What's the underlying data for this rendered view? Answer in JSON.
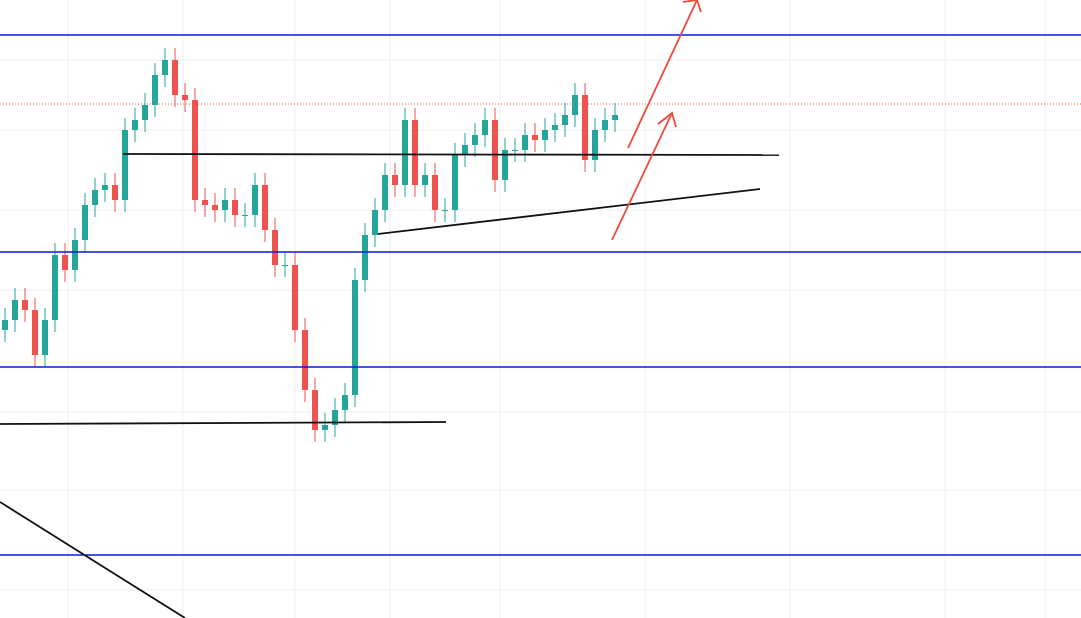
{
  "chart_data": {
    "type": "candlestick",
    "ylim": [
      0,
      618
    ],
    "up_color": "#26a69a",
    "down_color": "#ef5350",
    "open": [
      288,
      298,
      318,
      308,
      263,
      298,
      363,
      348,
      378,
      413,
      428,
      433,
      418,
      488,
      498,
      513,
      543,
      558,
      523,
      518,
      418,
      413,
      408,
      418,
      403,
      403,
      433,
      388,
      353,
      353,
      288,
      228,
      188,
      193,
      208,
      223,
      338,
      383,
      408,
      443,
      433,
      498,
      433,
      443,
      408,
      408,
      463,
      473,
      483,
      498,
      438,
      468,
      468,
      483,
      478,
      488,
      493,
      503,
      523,
      458,
      488,
      498
    ],
    "high": [
      310,
      330,
      330,
      320,
      310,
      375,
      375,
      390,
      425,
      440,
      445,
      445,
      500,
      510,
      525,
      555,
      570,
      570,
      535,
      530,
      430,
      425,
      430,
      430,
      415,
      445,
      445,
      400,
      365,
      365,
      300,
      240,
      205,
      220,
      235,
      350,
      395,
      420,
      455,
      455,
      510,
      510,
      455,
      455,
      420,
      475,
      485,
      495,
      510,
      510,
      480,
      480,
      495,
      495,
      500,
      505,
      515,
      535,
      535,
      500,
      510,
      515
    ],
    "low": [
      276,
      286,
      296,
      251,
      251,
      286,
      336,
      336,
      366,
      401,
      416,
      406,
      406,
      476,
      486,
      501,
      531,
      511,
      506,
      406,
      401,
      396,
      396,
      391,
      391,
      391,
      376,
      341,
      341,
      276,
      216,
      176,
      176,
      181,
      196,
      211,
      326,
      371,
      396,
      421,
      421,
      421,
      421,
      396,
      396,
      396,
      451,
      461,
      471,
      426,
      426,
      456,
      456,
      466,
      466,
      476,
      481,
      491,
      446,
      446,
      476,
      486
    ],
    "close": [
      298,
      318,
      308,
      263,
      298,
      363,
      348,
      378,
      413,
      428,
      433,
      418,
      488,
      498,
      513,
      543,
      558,
      523,
      518,
      418,
      413,
      408,
      418,
      403,
      403,
      433,
      388,
      353,
      353,
      288,
      228,
      188,
      193,
      208,
      223,
      338,
      383,
      408,
      443,
      433,
      498,
      433,
      443,
      408,
      408,
      463,
      473,
      483,
      498,
      438,
      468,
      468,
      483,
      478,
      488,
      493,
      503,
      523,
      458,
      488,
      498,
      503
    ]
  }
}
